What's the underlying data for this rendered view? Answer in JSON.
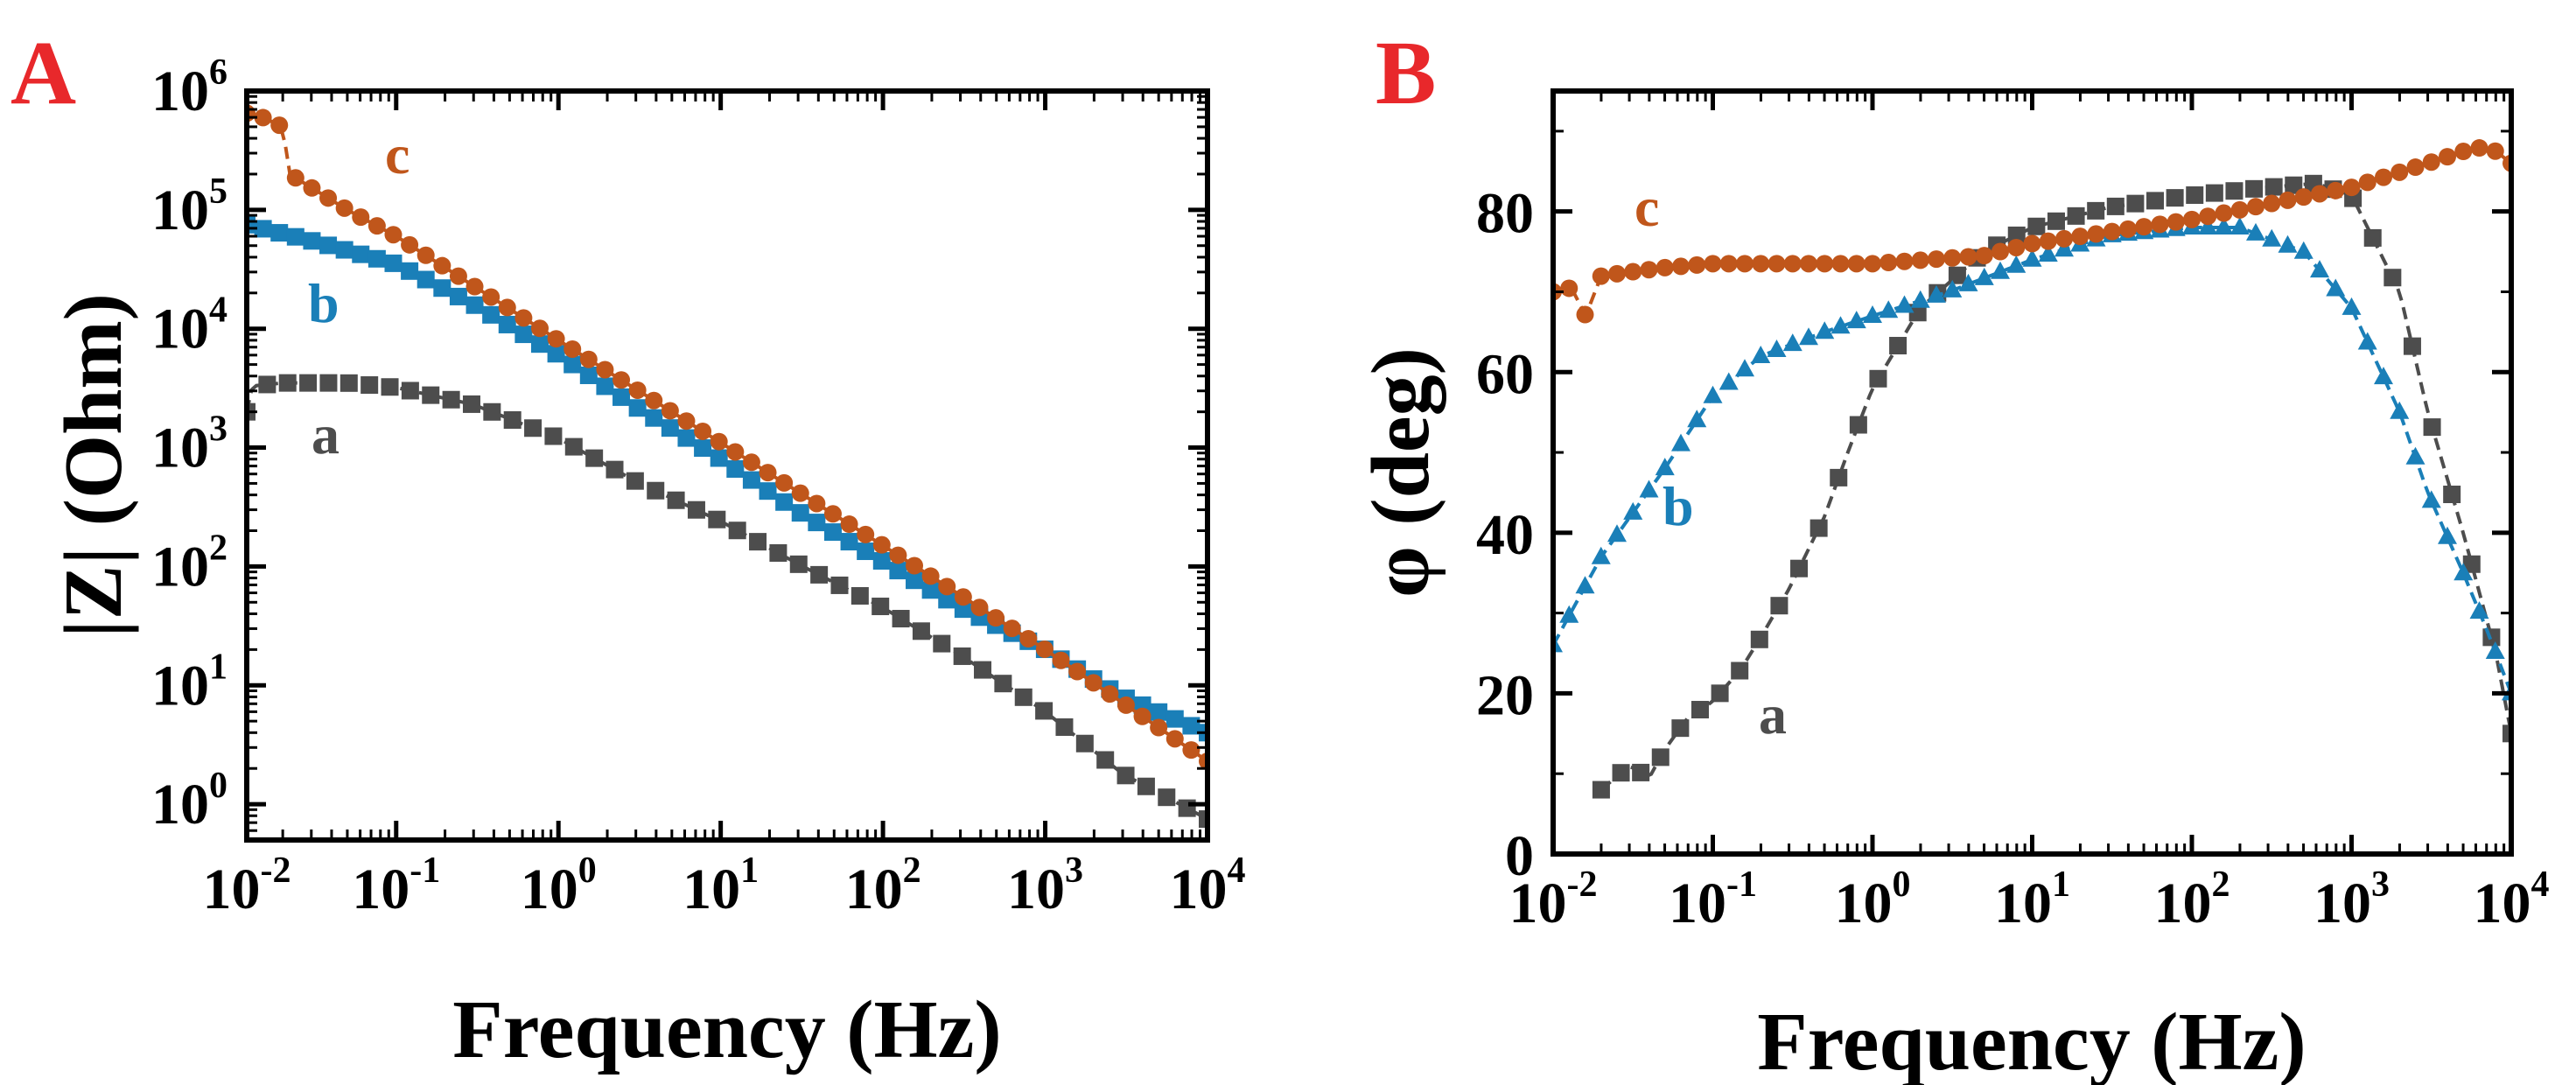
{
  "colors": {
    "a": "#4d4d4d",
    "b": "#1a7fb8",
    "c": "#c0561b",
    "panel_label": "#e8282b",
    "axis": "#000000"
  },
  "chart_data": [
    {
      "type": "line",
      "panel_label": "A",
      "title": "",
      "xlabel": "Frequency (Hz)",
      "ylabel": "|Z| (Ohm)",
      "xscale": "log",
      "yscale": "log",
      "xlim": [
        0.012,
        10000
      ],
      "ylim": [
        0.5,
        1000000
      ],
      "x_tick_labels": [
        {
          "value": 0.01,
          "base": "10",
          "exp": "-2"
        },
        {
          "value": 0.1,
          "base": "10",
          "exp": "-1"
        },
        {
          "value": 1,
          "base": "10",
          "exp": "0"
        },
        {
          "value": 10,
          "base": "10",
          "exp": "1"
        },
        {
          "value": 100,
          "base": "10",
          "exp": "2"
        },
        {
          "value": 1000,
          "base": "10",
          "exp": "3"
        },
        {
          "value": 10000,
          "base": "10",
          "exp": "4"
        }
      ],
      "y_tick_labels": [
        {
          "value": 1,
          "base": "10",
          "exp": "0"
        },
        {
          "value": 10,
          "base": "10",
          "exp": "1"
        },
        {
          "value": 100,
          "base": "10",
          "exp": "2"
        },
        {
          "value": 1000,
          "base": "10",
          "exp": "3"
        },
        {
          "value": 10000,
          "base": "10",
          "exp": "4"
        },
        {
          "value": 100000,
          "base": "10",
          "exp": "5"
        },
        {
          "value": 1000000,
          "base": "10",
          "exp": "6"
        }
      ],
      "series": [
        {
          "name": "a",
          "marker": "square",
          "points_per_decade": 8,
          "x": [
            0.012,
            0.013,
            0.02,
            0.05,
            0.1,
            0.3,
            1,
            3,
            10,
            30,
            100,
            300,
            1000,
            3000,
            10000
          ],
          "y": [
            2000,
            3300,
            3500,
            3500,
            3200,
            2300,
            1200,
            520,
            240,
            105,
            45,
            18,
            6,
            1.8,
            0.75
          ]
        },
        {
          "name": "b",
          "marker": "square",
          "points_per_decade": 10,
          "x": [
            0.012,
            0.03,
            0.1,
            0.3,
            1,
            3,
            10,
            30,
            100,
            300,
            1000,
            3000,
            10000
          ],
          "y": [
            75000,
            55000,
            35000,
            16000,
            6000,
            2200,
            800,
            290,
            110,
            45,
            20,
            8,
            4
          ]
        },
        {
          "name": "c",
          "marker": "circle",
          "points_per_decade": 10,
          "x": [
            0.012,
            0.015,
            0.02,
            0.022,
            0.05,
            0.1,
            1,
            10,
            100,
            1000,
            10000
          ],
          "y": [
            650000,
            600000,
            500000,
            200000,
            100000,
            60000,
            8000,
            1100,
            150,
            20,
            2.3
          ]
        }
      ],
      "annotations": [
        {
          "text": "a",
          "series": "a"
        },
        {
          "text": "b",
          "series": "b"
        },
        {
          "text": "c",
          "series": "c"
        }
      ]
    },
    {
      "type": "line",
      "panel_label": "B",
      "title": "",
      "xlabel": "Frequency (Hz)",
      "ylabel": "φ (deg)",
      "xscale": "log",
      "yscale": "linear",
      "xlim": [
        0.01,
        10000
      ],
      "ylim": [
        0,
        95
      ],
      "x_tick_labels": [
        {
          "value": 0.01,
          "base": "10",
          "exp": "-2"
        },
        {
          "value": 0.1,
          "base": "10",
          "exp": "-1"
        },
        {
          "value": 1,
          "base": "10",
          "exp": "0"
        },
        {
          "value": 10,
          "base": "10",
          "exp": "1"
        },
        {
          "value": 100,
          "base": "10",
          "exp": "2"
        },
        {
          "value": 1000,
          "base": "10",
          "exp": "3"
        },
        {
          "value": 10000,
          "base": "10",
          "exp": "4"
        }
      ],
      "y_tick_labels": [
        {
          "value": 0,
          "text": "0"
        },
        {
          "value": 20,
          "text": "20"
        },
        {
          "value": 40,
          "text": "40"
        },
        {
          "value": 60,
          "text": "60"
        },
        {
          "value": 80,
          "text": "80"
        }
      ],
      "series": [
        {
          "name": "a",
          "marker": "square",
          "points_per_decade": 8,
          "x": [
            0.02,
            0.03,
            0.04,
            0.05,
            0.07,
            0.1,
            0.15,
            0.2,
            0.3,
            0.5,
            0.7,
            1,
            2,
            5,
            10,
            30,
            100,
            300,
            600,
            1000,
            2000,
            3000,
            5000,
            8000,
            10000
          ],
          "y": [
            8,
            11,
            9.5,
            13,
            17,
            19,
            23,
            27,
            33,
            42,
            50,
            58,
            68,
            75,
            78,
            80.5,
            82,
            83,
            83.5,
            82,
            70,
            55,
            40,
            25,
            15
          ]
        },
        {
          "name": "b",
          "marker": "triangle",
          "points_per_decade": 10,
          "x": [
            0.01,
            0.02,
            0.05,
            0.1,
            0.2,
            0.5,
            1,
            3,
            10,
            30,
            100,
            200,
            500,
            1000,
            2000,
            3000,
            5000,
            7000,
            10000
          ],
          "y": [
            26,
            37,
            48,
            57,
            62,
            65,
            67,
            70,
            74,
            77,
            78,
            78,
            75,
            68,
            55,
            45,
            35,
            28,
            20
          ]
        },
        {
          "name": "c",
          "marker": "circle",
          "points_per_decade": 10,
          "x": [
            0.01,
            0.013,
            0.016,
            0.02,
            0.05,
            0.1,
            1,
            5,
            10,
            100,
            1000,
            3000,
            6000,
            8000,
            10000
          ],
          "y": [
            70,
            70.5,
            67,
            72,
            73,
            73.5,
            73.5,
            74.5,
            76,
            79,
            83,
            86,
            88,
            87.5,
            86
          ]
        }
      ],
      "annotations": [
        {
          "text": "a",
          "series": "a"
        },
        {
          "text": "b",
          "series": "b"
        },
        {
          "text": "c",
          "series": "c"
        }
      ]
    }
  ]
}
